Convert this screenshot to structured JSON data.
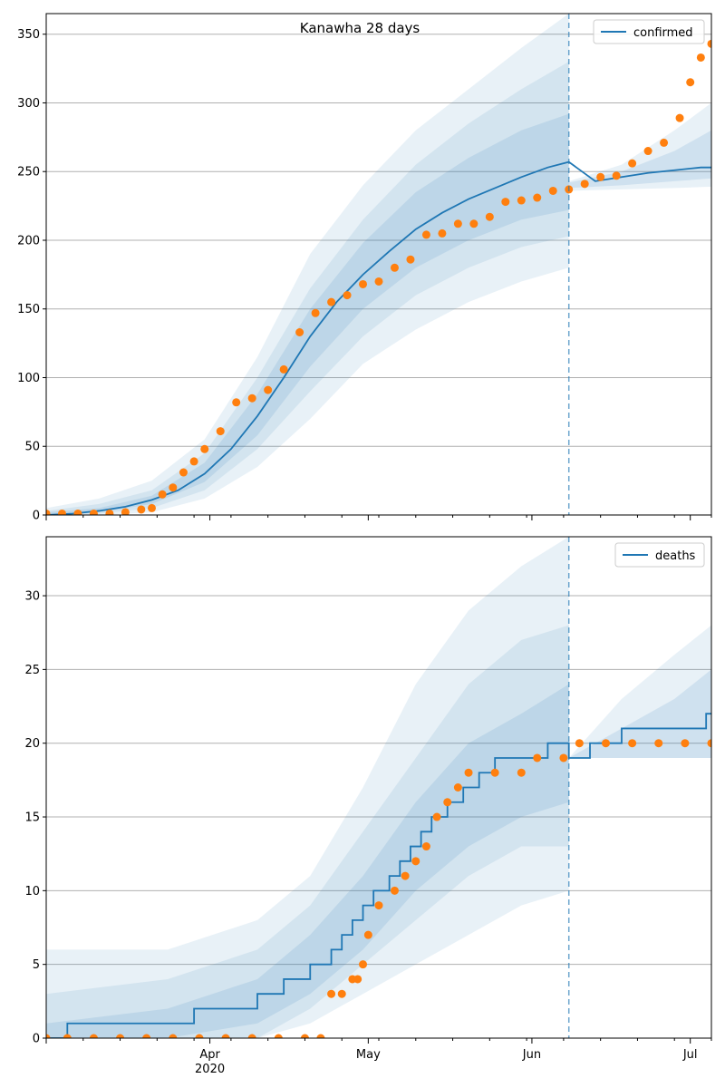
{
  "chart_data": [
    {
      "type": "line",
      "title": "Kanawha 28 days",
      "legend": {
        "entries": [
          "confirmed"
        ],
        "placement": "top-right"
      },
      "x_range": [
        "2020-03-01",
        "2020-07-05"
      ],
      "ylim": [
        0,
        365
      ],
      "y_ticks": [
        0,
        50,
        100,
        150,
        200,
        250,
        300,
        350
      ],
      "grid": "horizontal",
      "forecast_start": "2020-06-08",
      "series": [
        {
          "name": "confirmed",
          "kind": "median",
          "color": "#1f77b4",
          "x": [
            "2020-03-01",
            "2020-03-06",
            "2020-03-11",
            "2020-03-16",
            "2020-03-21",
            "2020-03-26",
            "2020-03-31",
            "2020-04-05",
            "2020-04-10",
            "2020-04-15",
            "2020-04-20",
            "2020-04-25",
            "2020-04-30",
            "2020-05-05",
            "2020-05-10",
            "2020-05-15",
            "2020-05-20",
            "2020-05-25",
            "2020-05-30",
            "2020-06-04",
            "2020-06-08",
            "2020-06-13",
            "2020-06-18",
            "2020-06-23",
            "2020-06-28",
            "2020-07-03",
            "2020-07-05"
          ],
          "y": [
            0,
            1,
            3,
            6,
            11,
            18,
            30,
            48,
            72,
            100,
            130,
            155,
            175,
            192,
            208,
            220,
            230,
            238,
            246,
            253,
            257,
            243,
            246,
            249,
            251,
            253,
            253
          ]
        }
      ],
      "bands": [
        {
          "level": "outer",
          "x": [
            "2020-03-01",
            "2020-03-11",
            "2020-03-21",
            "2020-03-31",
            "2020-04-10",
            "2020-04-20",
            "2020-04-30",
            "2020-05-10",
            "2020-05-20",
            "2020-05-30",
            "2020-06-08"
          ],
          "lower": [
            0,
            0,
            2,
            12,
            35,
            70,
            110,
            135,
            155,
            170,
            180
          ],
          "upper": [
            5,
            12,
            25,
            55,
            115,
            190,
            240,
            280,
            310,
            340,
            365
          ]
        },
        {
          "level": "mid",
          "x": [
            "2020-03-01",
            "2020-03-11",
            "2020-03-21",
            "2020-03-31",
            "2020-04-10",
            "2020-04-20",
            "2020-04-30",
            "2020-05-10",
            "2020-05-20",
            "2020-05-30",
            "2020-06-08"
          ],
          "lower": [
            0,
            1,
            5,
            18,
            48,
            90,
            130,
            160,
            180,
            195,
            203
          ],
          "upper": [
            3,
            8,
            18,
            45,
            100,
            165,
            215,
            255,
            285,
            310,
            330
          ]
        },
        {
          "level": "inner",
          "x": [
            "2020-03-01",
            "2020-03-11",
            "2020-03-21",
            "2020-03-31",
            "2020-04-10",
            "2020-04-20",
            "2020-04-30",
            "2020-05-10",
            "2020-05-20",
            "2020-05-30",
            "2020-06-08"
          ],
          "lower": [
            0,
            2,
            8,
            24,
            58,
            108,
            150,
            180,
            200,
            215,
            222
          ],
          "upper": [
            2,
            5,
            14,
            38,
            88,
            150,
            198,
            235,
            260,
            280,
            292
          ]
        },
        {
          "level": "outer",
          "x": [
            "2020-06-08",
            "2020-06-18",
            "2020-06-28",
            "2020-07-05"
          ],
          "lower": [
            236,
            237,
            238,
            239
          ],
          "upper": [
            243,
            255,
            280,
            300
          ]
        },
        {
          "level": "inner",
          "x": [
            "2020-06-08",
            "2020-06-18",
            "2020-06-28",
            "2020-07-05"
          ],
          "lower": [
            238,
            240,
            243,
            245
          ],
          "upper": [
            242,
            250,
            265,
            280
          ]
        }
      ],
      "observed": {
        "color": "#ff7f0e",
        "x": [
          "2020-03-01",
          "2020-03-04",
          "2020-03-07",
          "2020-03-10",
          "2020-03-13",
          "2020-03-16",
          "2020-03-19",
          "2020-03-21",
          "2020-03-23",
          "2020-03-25",
          "2020-03-27",
          "2020-03-29",
          "2020-03-31",
          "2020-04-03",
          "2020-04-06",
          "2020-04-09",
          "2020-04-12",
          "2020-04-15",
          "2020-04-18",
          "2020-04-21",
          "2020-04-24",
          "2020-04-27",
          "2020-04-30",
          "2020-05-03",
          "2020-05-06",
          "2020-05-09",
          "2020-05-12",
          "2020-05-15",
          "2020-05-18",
          "2020-05-21",
          "2020-05-24",
          "2020-05-27",
          "2020-05-30",
          "2020-06-02",
          "2020-06-05",
          "2020-06-08",
          "2020-06-11",
          "2020-06-14",
          "2020-06-17",
          "2020-06-20",
          "2020-06-23",
          "2020-06-26",
          "2020-06-29",
          "2020-07-01",
          "2020-07-03",
          "2020-07-05"
        ],
        "y": [
          1,
          1,
          1,
          1,
          1,
          2,
          4,
          5,
          15,
          20,
          31,
          39,
          48,
          61,
          82,
          85,
          91,
          106,
          133,
          147,
          155,
          160,
          168,
          170,
          180,
          186,
          204,
          205,
          212,
          212,
          217,
          228,
          229,
          231,
          236,
          237,
          241,
          246,
          247,
          256,
          265,
          271,
          289,
          315,
          333,
          343
        ]
      },
      "axis": {
        "x_tick_labels": []
      }
    },
    {
      "type": "line",
      "title": "",
      "legend": {
        "entries": [
          "deaths"
        ],
        "placement": "top-right"
      },
      "x_range": [
        "2020-03-01",
        "2020-07-05"
      ],
      "ylim": [
        0,
        34
      ],
      "y_ticks": [
        0,
        5,
        10,
        15,
        20,
        25,
        30
      ],
      "grid": "horizontal",
      "forecast_start": "2020-06-08",
      "series": [
        {
          "name": "deaths",
          "kind": "median-step",
          "color": "#1f77b4",
          "x": [
            "2020-03-01",
            "2020-03-05",
            "2020-03-29",
            "2020-04-10",
            "2020-04-15",
            "2020-04-20",
            "2020-04-24",
            "2020-04-26",
            "2020-04-28",
            "2020-04-30",
            "2020-05-02",
            "2020-05-05",
            "2020-05-07",
            "2020-05-09",
            "2020-05-11",
            "2020-05-13",
            "2020-05-16",
            "2020-05-19",
            "2020-05-22",
            "2020-05-25",
            "2020-05-28",
            "2020-06-01",
            "2020-06-04",
            "2020-06-08",
            "2020-06-12",
            "2020-06-18",
            "2020-07-04",
            "2020-07-05"
          ],
          "y": [
            0,
            1,
            2,
            3,
            4,
            5,
            6,
            7,
            8,
            9,
            10,
            11,
            12,
            13,
            14,
            15,
            16,
            17,
            18,
            19,
            19,
            19,
            20,
            19,
            20,
            21,
            22,
            22
          ]
        }
      ],
      "bands": [
        {
          "level": "outer",
          "x": [
            "2020-03-01",
            "2020-03-24",
            "2020-04-10",
            "2020-04-20",
            "2020-04-30",
            "2020-05-10",
            "2020-05-20",
            "2020-05-30",
            "2020-06-08"
          ],
          "lower": [
            0,
            0,
            0,
            1,
            3,
            5,
            7,
            9,
            10
          ],
          "upper": [
            6,
            6,
            8,
            11,
            17,
            24,
            29,
            32,
            34
          ]
        },
        {
          "level": "mid",
          "x": [
            "2020-03-01",
            "2020-03-24",
            "2020-04-10",
            "2020-04-20",
            "2020-04-30",
            "2020-05-10",
            "2020-05-20",
            "2020-05-30",
            "2020-06-08"
          ],
          "lower": [
            0,
            0,
            0,
            2,
            5,
            8,
            11,
            13,
            13
          ],
          "upper": [
            3,
            4,
            6,
            9,
            14,
            19,
            24,
            27,
            28
          ]
        },
        {
          "level": "inner",
          "x": [
            "2020-03-01",
            "2020-03-24",
            "2020-04-10",
            "2020-04-20",
            "2020-04-30",
            "2020-05-10",
            "2020-05-20",
            "2020-05-30",
            "2020-06-08"
          ],
          "lower": [
            0,
            0,
            1,
            3,
            6,
            10,
            13,
            15,
            16
          ],
          "upper": [
            1,
            2,
            4,
            7,
            11,
            16,
            20,
            22,
            24
          ]
        },
        {
          "level": "outer",
          "x": [
            "2020-06-08",
            "2020-06-18",
            "2020-06-28",
            "2020-07-05"
          ],
          "lower": [
            19,
            19,
            19,
            19
          ],
          "upper": [
            19,
            23,
            26,
            28
          ]
        },
        {
          "level": "inner",
          "x": [
            "2020-06-08",
            "2020-06-18",
            "2020-06-28",
            "2020-07-05"
          ],
          "lower": [
            19,
            19,
            19,
            19
          ],
          "upper": [
            19,
            21,
            23,
            25
          ]
        }
      ],
      "observed": {
        "color": "#ff7f0e",
        "x": [
          "2020-03-01",
          "2020-03-05",
          "2020-03-10",
          "2020-03-15",
          "2020-03-20",
          "2020-03-25",
          "2020-03-30",
          "2020-04-04",
          "2020-04-09",
          "2020-04-14",
          "2020-04-19",
          "2020-04-22",
          "2020-04-24",
          "2020-04-26",
          "2020-04-28",
          "2020-04-29",
          "2020-04-30",
          "2020-05-01",
          "2020-05-03",
          "2020-05-06",
          "2020-05-08",
          "2020-05-10",
          "2020-05-12",
          "2020-05-14",
          "2020-05-16",
          "2020-05-18",
          "2020-05-20",
          "2020-05-25",
          "2020-05-30",
          "2020-06-02",
          "2020-06-07",
          "2020-06-10",
          "2020-06-15",
          "2020-06-20",
          "2020-06-25",
          "2020-06-30",
          "2020-07-05"
        ],
        "y": [
          0,
          0,
          0,
          0,
          0,
          0,
          0,
          0,
          0,
          0,
          0,
          0,
          3,
          3,
          4,
          4,
          5,
          7,
          9,
          10,
          11,
          12,
          13,
          15,
          16,
          17,
          18,
          18,
          18,
          19,
          19,
          20,
          20,
          20,
          20,
          20,
          20
        ]
      },
      "axis": {
        "x_tick_labels": [
          {
            "date": "2020-04-01",
            "label": "Apr",
            "sublabel": "2020"
          },
          {
            "date": "2020-05-01",
            "label": "May",
            "sublabel": ""
          },
          {
            "date": "2020-06-01",
            "label": "Jun",
            "sublabel": ""
          },
          {
            "date": "2020-07-01",
            "label": "Jul",
            "sublabel": ""
          }
        ]
      }
    }
  ],
  "colors": {
    "median": "#1f77b4",
    "observed": "#ff7f0e",
    "band": "#1f77b4",
    "grid": "#b0b0b0",
    "forecast_line": "#1f77b4"
  }
}
